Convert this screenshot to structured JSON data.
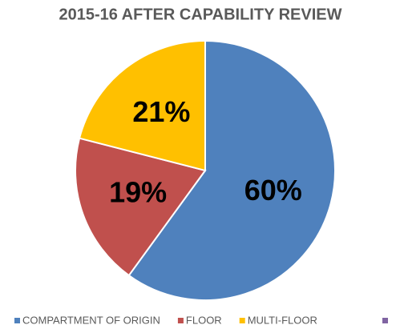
{
  "chart_data": {
    "type": "pie",
    "title": "2015-16 AFTER CAPABILITY REVIEW",
    "categories": [
      "COMPARTMENT OF ORIGIN",
      "FLOOR",
      "MULTI-FLOOR"
    ],
    "values": [
      60,
      19,
      21
    ],
    "value_labels": [
      "60%",
      "19%",
      "21%"
    ],
    "colors": [
      "#4f81bd",
      "#c0504d",
      "#ffc000"
    ],
    "legend": "bottom"
  }
}
